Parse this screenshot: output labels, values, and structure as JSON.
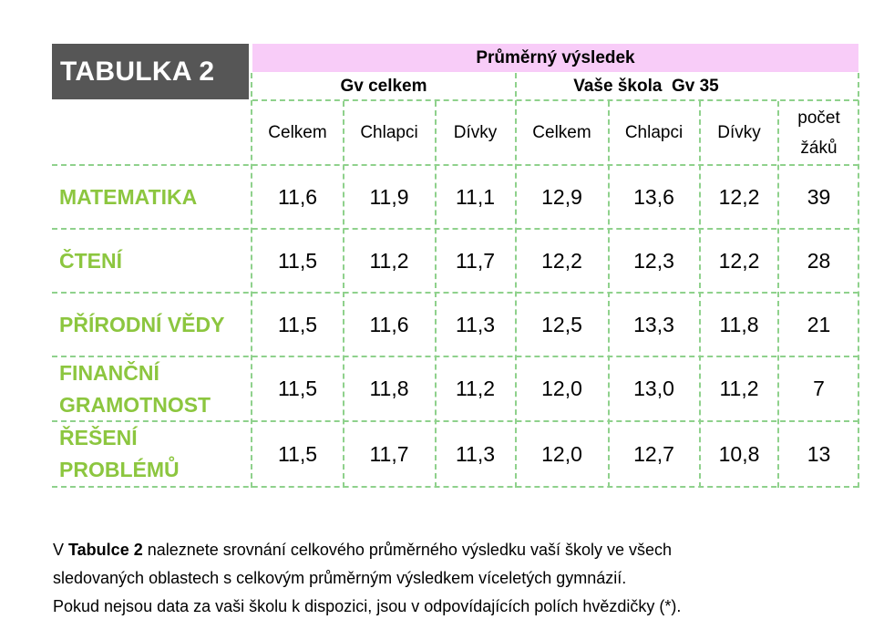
{
  "title": "TABULKA 2",
  "main_header": "Průměrný výsledek",
  "groups": [
    "Gv celkem",
    "Vaše škola  Gv 35"
  ],
  "columns": [
    "Celkem",
    "Chlapci",
    "Dívky",
    "Celkem",
    "Chlapci",
    "Dívky",
    "počet žáků"
  ],
  "rows": [
    {
      "label": "MATEMATIKA",
      "values": [
        "11,6",
        "11,9",
        "11,1",
        "12,9",
        "13,6",
        "12,2",
        "39"
      ]
    },
    {
      "label": "ČTENÍ",
      "values": [
        "11,5",
        "11,2",
        "11,7",
        "12,2",
        "12,3",
        "12,2",
        "28"
      ]
    },
    {
      "label": "PŘÍRODNÍ VĚDY",
      "values": [
        "11,5",
        "11,6",
        "11,3",
        "12,5",
        "13,3",
        "11,8",
        "21"
      ]
    },
    {
      "label": "FINANČNÍ GRAMOTNOST",
      "values": [
        "11,5",
        "11,8",
        "11,2",
        "12,0",
        "13,0",
        "11,2",
        "7"
      ]
    },
    {
      "label": "ŘEŠENÍ PROBLÉMŮ",
      "values": [
        "11,5",
        "11,7",
        "11,3",
        "12,0",
        "12,7",
        "10,8",
        "13"
      ]
    }
  ],
  "caption": {
    "line1_pre": "V ",
    "line1_bold": "Tabulce 2",
    "line1_post": " naleznete srovnání celkového průměrného výsledku vaší školy ve všech",
    "line2": "sledovaných oblastech s celkovým průměrným výsledkem víceletých gymnázií.",
    "line3": "Pokud nejsou data za vaši školu k dispozici, jsou v odpovídajících polích hvězdičky (*)."
  },
  "colors": {
    "header_bg": "#565656",
    "pink_header": "#f8ccf8",
    "label_green": "#8cc63f",
    "grid_green": "#8fd18c"
  }
}
